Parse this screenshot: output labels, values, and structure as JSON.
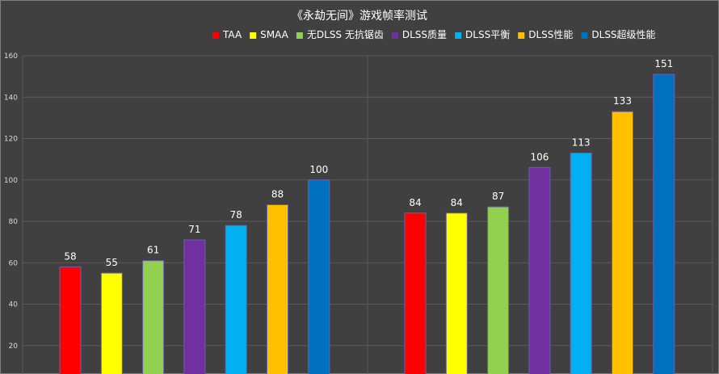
{
  "chart_data": {
    "type": "bar",
    "title": "《永劫无间》游戏帧率测试",
    "xlabel": "",
    "ylabel": "",
    "ylim": [
      0,
      160
    ],
    "yticks": [
      20,
      40,
      60,
      80,
      100,
      120,
      140,
      160
    ],
    "grid": true,
    "legend_position": "top",
    "groups": 2,
    "series": [
      {
        "name": "TAA",
        "color": "#ff0000",
        "values": [
          58,
          84
        ]
      },
      {
        "name": "SMAA",
        "color": "#ffff00",
        "values": [
          55,
          84
        ]
      },
      {
        "name": "无DLSS 无抗锯齿",
        "color": "#92d050",
        "values": [
          61,
          87
        ]
      },
      {
        "name": "DLSS质量",
        "color": "#7030a0",
        "values": [
          71,
          106
        ]
      },
      {
        "name": "DLSS平衡",
        "color": "#00b0f0",
        "values": [
          78,
          113
        ]
      },
      {
        "name": "DLSS性能",
        "color": "#ffc000",
        "values": [
          88,
          133
        ]
      },
      {
        "name": "DLSS超级性能",
        "color": "#0070c0",
        "values": [
          100,
          151
        ]
      }
    ]
  }
}
